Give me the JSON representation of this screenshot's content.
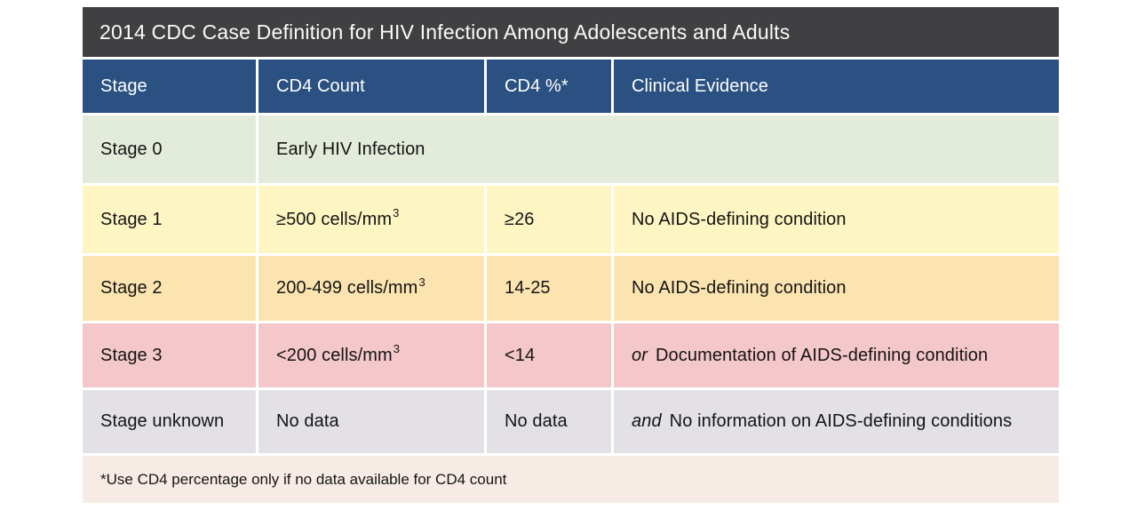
{
  "colors": {
    "page_background": "#ffffff",
    "title_bar": "#403f42",
    "header_row": "#2b5182",
    "header_text": "#ffffff",
    "body_text": "#141414",
    "row_stage0": "#e3ecda",
    "row_stage1": "#fdf6c3",
    "row_stage2": "#fce4b0",
    "row_stage3": "#f4c7ca",
    "row_unknown": "#e3e1e6",
    "footnote_bg": "#f7ece5",
    "divider": "#ffffff"
  },
  "table": {
    "title": "2014 CDC Case Definition for HIV Infection Among Adolescents and Adults",
    "columns": [
      "Stage",
      "CD4 Count",
      "CD4 %*",
      "Clinical Evidence"
    ],
    "rows": {
      "stage0": {
        "stage": "Stage 0",
        "merged_text": "Early HIV Infection"
      },
      "stage1": {
        "stage": "Stage 1",
        "cd4_count": "≥500 cells/mm",
        "cd4_count_sup": "3",
        "cd4_pct": "≥26",
        "clinical": "No AIDS-defining condition"
      },
      "stage2": {
        "stage": "Stage 2",
        "cd4_count": "200-499 cells/mm",
        "cd4_count_sup": "3",
        "cd4_pct": "14-25",
        "clinical": "No AIDS-defining condition"
      },
      "stage3": {
        "stage": "Stage 3",
        "cd4_count": "<200 cells/mm",
        "cd4_count_sup": "3",
        "cd4_pct": "<14",
        "clinical_prefix": "or",
        "clinical": "Documentation of  AIDS-defining condition"
      },
      "unknown": {
        "stage": "Stage unknown",
        "cd4_count": "No data",
        "cd4_pct": "No data",
        "clinical_prefix": "and",
        "clinical": "No information on AIDS-defining conditions"
      }
    },
    "footnote": "*Use CD4 percentage only if no data available for CD4 count"
  }
}
